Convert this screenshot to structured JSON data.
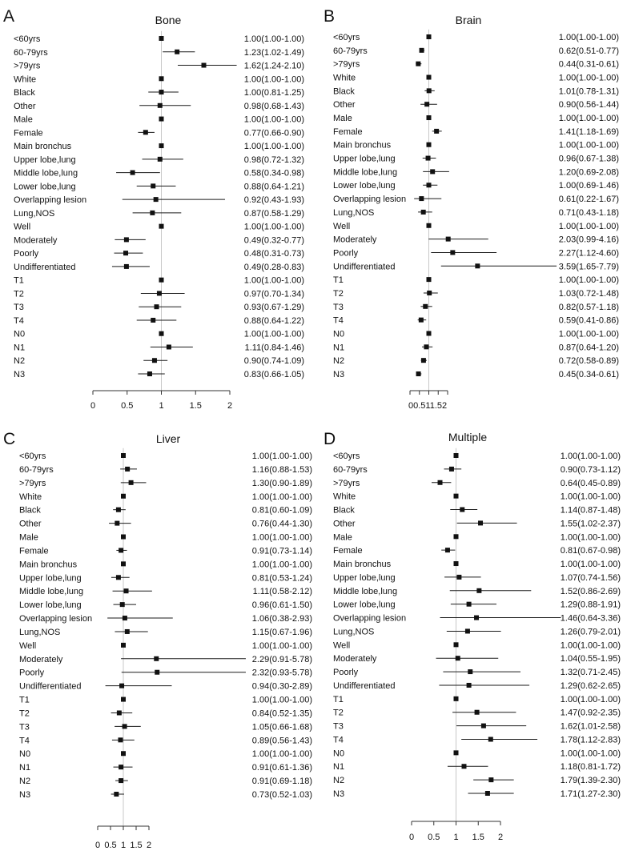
{
  "chart_data": [
    {
      "type": "forest",
      "panel_letter": "A",
      "title": "Bone",
      "ref_value": 1,
      "xticks": [
        0,
        0.5,
        1,
        1.5,
        2
      ],
      "xtick_labels": [
        "0",
        "0.5",
        "1",
        "1.5",
        "2"
      ],
      "rows": [
        {
          "label": "<60yrs",
          "est": 1.0,
          "lo": 1.0,
          "hi": 1.0,
          "text": "1.00(1.00-1.00)"
        },
        {
          "label": "60-79yrs",
          "est": 1.23,
          "lo": 1.02,
          "hi": 1.49,
          "text": "1.23(1.02-1.49)"
        },
        {
          "label": ">79yrs",
          "est": 1.62,
          "lo": 1.24,
          "hi": 2.1,
          "text": "1.62(1.24-2.10)"
        },
        {
          "label": "White",
          "est": 1.0,
          "lo": 1.0,
          "hi": 1.0,
          "text": "1.00(1.00-1.00)"
        },
        {
          "label": "Black",
          "est": 1.0,
          "lo": 0.81,
          "hi": 1.25,
          "text": "1.00(0.81-1.25)"
        },
        {
          "label": "Other",
          "est": 0.98,
          "lo": 0.68,
          "hi": 1.43,
          "text": "0.98(0.68-1.43)"
        },
        {
          "label": "Male",
          "est": 1.0,
          "lo": 1.0,
          "hi": 1.0,
          "text": "1.00(1.00-1.00)"
        },
        {
          "label": "Female",
          "est": 0.77,
          "lo": 0.66,
          "hi": 0.9,
          "text": "0.77(0.66-0.90)"
        },
        {
          "label": "Main bronchus",
          "est": 1.0,
          "lo": 1.0,
          "hi": 1.0,
          "text": "1.00(1.00-1.00)"
        },
        {
          "label": "Upper lobe,lung",
          "est": 0.98,
          "lo": 0.72,
          "hi": 1.32,
          "text": "0.98(0.72-1.32)"
        },
        {
          "label": "Middle lobe,lung",
          "est": 0.58,
          "lo": 0.34,
          "hi": 0.98,
          "text": "0.58(0.34-0.98)"
        },
        {
          "label": "Lower lobe,lung",
          "est": 0.88,
          "lo": 0.64,
          "hi": 1.21,
          "text": "0.88(0.64-1.21)"
        },
        {
          "label": "Overlapping lesion",
          "est": 0.92,
          "lo": 0.43,
          "hi": 1.93,
          "text": "0.92(0.43-1.93)"
        },
        {
          "label": "Lung,NOS",
          "est": 0.87,
          "lo": 0.58,
          "hi": 1.29,
          "text": "0.87(0.58-1.29)"
        },
        {
          "label": "Well",
          "est": 1.0,
          "lo": 1.0,
          "hi": 1.0,
          "text": "1.00(1.00-1.00)"
        },
        {
          "label": "Moderately",
          "est": 0.49,
          "lo": 0.32,
          "hi": 0.77,
          "text": "0.49(0.32-0.77)"
        },
        {
          "label": "Poorly",
          "est": 0.48,
          "lo": 0.31,
          "hi": 0.73,
          "text": "0.48(0.31-0.73)"
        },
        {
          "label": "Undifferentiated",
          "est": 0.49,
          "lo": 0.28,
          "hi": 0.83,
          "text": "0.49(0.28-0.83)"
        },
        {
          "label": "T1",
          "est": 1.0,
          "lo": 1.0,
          "hi": 1.0,
          "text": "1.00(1.00-1.00)"
        },
        {
          "label": "T2",
          "est": 0.97,
          "lo": 0.7,
          "hi": 1.34,
          "text": "0.97(0.70-1.34)"
        },
        {
          "label": "T3",
          "est": 0.93,
          "lo": 0.67,
          "hi": 1.29,
          "text": "0.93(0.67-1.29)"
        },
        {
          "label": "T4",
          "est": 0.88,
          "lo": 0.64,
          "hi": 1.22,
          "text": "0.88(0.64-1.22)"
        },
        {
          "label": "N0",
          "est": 1.0,
          "lo": 1.0,
          "hi": 1.0,
          "text": "1.00(1.00-1.00)"
        },
        {
          "label": "N1",
          "est": 1.11,
          "lo": 0.84,
          "hi": 1.46,
          "text": "1.11(0.84-1.46)"
        },
        {
          "label": "N2",
          "est": 0.9,
          "lo": 0.74,
          "hi": 1.09,
          "text": "0.90(0.74-1.09)"
        },
        {
          "label": "N3",
          "est": 0.83,
          "lo": 0.66,
          "hi": 1.05,
          "text": "0.83(0.66-1.05)"
        }
      ]
    },
    {
      "type": "forest",
      "panel_letter": "B",
      "title": "Brain",
      "ref_value": 1,
      "xticks": [
        0,
        0.5,
        1,
        1.5,
        2
      ],
      "xtick_labels_combined": "00.511.52",
      "rows": [
        {
          "label": "<60yrs",
          "est": 1.0,
          "lo": 1.0,
          "hi": 1.0,
          "text": "1.00(1.00-1.00)"
        },
        {
          "label": "60-79yrs",
          "est": 0.62,
          "lo": 0.51,
          "hi": 0.77,
          "text": "0.62(0.51-0.77)"
        },
        {
          "label": ">79yrs",
          "est": 0.44,
          "lo": 0.31,
          "hi": 0.61,
          "text": "0.44(0.31-0.61)"
        },
        {
          "label": "White",
          "est": 1.0,
          "lo": 1.0,
          "hi": 1.0,
          "text": "1.00(1.00-1.00)"
        },
        {
          "label": "Black",
          "est": 1.01,
          "lo": 0.78,
          "hi": 1.31,
          "text": "1.01(0.78-1.31)"
        },
        {
          "label": "Other",
          "est": 0.9,
          "lo": 0.56,
          "hi": 1.44,
          "text": "0.90(0.56-1.44)"
        },
        {
          "label": "Male",
          "est": 1.0,
          "lo": 1.0,
          "hi": 1.0,
          "text": "1.00(1.00-1.00)"
        },
        {
          "label": "Female",
          "est": 1.41,
          "lo": 1.18,
          "hi": 1.69,
          "text": "1.41(1.18-1.69)"
        },
        {
          "label": "Main bronchus",
          "est": 1.0,
          "lo": 1.0,
          "hi": 1.0,
          "text": "1.00(1.00-1.00)"
        },
        {
          "label": "Upper lobe,lung",
          "est": 0.96,
          "lo": 0.67,
          "hi": 1.38,
          "text": "0.96(0.67-1.38)"
        },
        {
          "label": "Middle lobe,lung",
          "est": 1.2,
          "lo": 0.69,
          "hi": 2.08,
          "text": "1.20(0.69-2.08)"
        },
        {
          "label": "Lower lobe,lung",
          "est": 1.0,
          "lo": 0.69,
          "hi": 1.46,
          "text": "1.00(0.69-1.46)"
        },
        {
          "label": "Overlapping lesion",
          "est": 0.61,
          "lo": 0.22,
          "hi": 1.67,
          "text": "0.61(0.22-1.67)"
        },
        {
          "label": "Lung,NOS",
          "est": 0.71,
          "lo": 0.43,
          "hi": 1.18,
          "text": "0.71(0.43-1.18)"
        },
        {
          "label": "Well",
          "est": 1.0,
          "lo": 1.0,
          "hi": 1.0,
          "text": "1.00(1.00-1.00)"
        },
        {
          "label": "Moderately",
          "est": 2.03,
          "lo": 0.99,
          "hi": 4.16,
          "text": "2.03(0.99-4.16)"
        },
        {
          "label": "Poorly",
          "est": 2.27,
          "lo": 1.12,
          "hi": 4.6,
          "text": "2.27(1.12-4.60)"
        },
        {
          "label": "Undifferentiated",
          "est": 3.59,
          "lo": 1.65,
          "hi": 7.79,
          "text": "3.59(1.65-7.79)"
        },
        {
          "label": "T1",
          "est": 1.0,
          "lo": 1.0,
          "hi": 1.0,
          "text": "1.00(1.00-1.00)"
        },
        {
          "label": "T2",
          "est": 1.03,
          "lo": 0.72,
          "hi": 1.48,
          "text": "1.03(0.72-1.48)"
        },
        {
          "label": "T3",
          "est": 0.82,
          "lo": 0.57,
          "hi": 1.18,
          "text": "0.82(0.57-1.18)"
        },
        {
          "label": "T4",
          "est": 0.59,
          "lo": 0.41,
          "hi": 0.86,
          "text": "0.59(0.41-0.86)"
        },
        {
          "label": "N0",
          "est": 1.0,
          "lo": 1.0,
          "hi": 1.0,
          "text": "1.00(1.00-1.00)"
        },
        {
          "label": "N1",
          "est": 0.87,
          "lo": 0.64,
          "hi": 1.2,
          "text": "0.87(0.64-1.20)"
        },
        {
          "label": "N2",
          "est": 0.72,
          "lo": 0.58,
          "hi": 0.89,
          "text": "0.72(0.58-0.89)"
        },
        {
          "label": "N3",
          "est": 0.45,
          "lo": 0.34,
          "hi": 0.61,
          "text": "0.45(0.34-0.61)"
        }
      ]
    },
    {
      "type": "forest",
      "panel_letter": "C",
      "title": "Liver",
      "ref_value": 1,
      "xticks": [
        0,
        0.5,
        1,
        1.5,
        2
      ],
      "xtick_labels": [
        "0",
        "0.5",
        "1",
        "1.5",
        "2"
      ],
      "rows": [
        {
          "label": "<60yrs",
          "est": 1.0,
          "lo": 1.0,
          "hi": 1.0,
          "text": "1.00(1.00-1.00)"
        },
        {
          "label": "60-79yrs",
          "est": 1.16,
          "lo": 0.88,
          "hi": 1.53,
          "text": "1.16(0.88-1.53)"
        },
        {
          "label": ">79yrs",
          "est": 1.3,
          "lo": 0.9,
          "hi": 1.89,
          "text": "1.30(0.90-1.89)"
        },
        {
          "label": "White",
          "est": 1.0,
          "lo": 1.0,
          "hi": 1.0,
          "text": "1.00(1.00-1.00)"
        },
        {
          "label": "Black",
          "est": 0.81,
          "lo": 0.6,
          "hi": 1.09,
          "text": "0.81(0.60-1.09)"
        },
        {
          "label": "Other",
          "est": 0.76,
          "lo": 0.44,
          "hi": 1.3,
          "text": "0.76(0.44-1.30)"
        },
        {
          "label": "Male",
          "est": 1.0,
          "lo": 1.0,
          "hi": 1.0,
          "text": "1.00(1.00-1.00)"
        },
        {
          "label": "Female",
          "est": 0.91,
          "lo": 0.73,
          "hi": 1.14,
          "text": "0.91(0.73-1.14)"
        },
        {
          "label": "Main bronchus",
          "est": 1.0,
          "lo": 1.0,
          "hi": 1.0,
          "text": "1.00(1.00-1.00)"
        },
        {
          "label": "Upper lobe,lung",
          "est": 0.81,
          "lo": 0.53,
          "hi": 1.24,
          "text": "0.81(0.53-1.24)"
        },
        {
          "label": "Middle lobe,lung",
          "est": 1.11,
          "lo": 0.58,
          "hi": 2.12,
          "text": "1.11(0.58-2.12)"
        },
        {
          "label": "Lower lobe,lung",
          "est": 0.96,
          "lo": 0.61,
          "hi": 1.5,
          "text": "0.96(0.61-1.50)"
        },
        {
          "label": "Overlapping lesion",
          "est": 1.06,
          "lo": 0.38,
          "hi": 2.93,
          "text": "1.06(0.38-2.93)"
        },
        {
          "label": "Lung,NOS",
          "est": 1.15,
          "lo": 0.67,
          "hi": 1.96,
          "text": "1.15(0.67-1.96)"
        },
        {
          "label": "Well",
          "est": 1.0,
          "lo": 1.0,
          "hi": 1.0,
          "text": "1.00(1.00-1.00)"
        },
        {
          "label": "Moderately",
          "est": 2.29,
          "lo": 0.91,
          "hi": 5.78,
          "text": "2.29(0.91-5.78)"
        },
        {
          "label": "Poorly",
          "est": 2.32,
          "lo": 0.93,
          "hi": 5.78,
          "text": "2.32(0.93-5.78)"
        },
        {
          "label": "Undifferentiated",
          "est": 0.94,
          "lo": 0.3,
          "hi": 2.89,
          "text": "0.94(0.30-2.89)"
        },
        {
          "label": "T1",
          "est": 1.0,
          "lo": 1.0,
          "hi": 1.0,
          "text": "1.00(1.00-1.00)"
        },
        {
          "label": "T2",
          "est": 0.84,
          "lo": 0.52,
          "hi": 1.35,
          "text": "0.84(0.52-1.35)"
        },
        {
          "label": "T3",
          "est": 1.05,
          "lo": 0.66,
          "hi": 1.68,
          "text": "1.05(0.66-1.68)"
        },
        {
          "label": "T4",
          "est": 0.89,
          "lo": 0.56,
          "hi": 1.43,
          "text": "0.89(0.56-1.43)"
        },
        {
          "label": "N0",
          "est": 1.0,
          "lo": 1.0,
          "hi": 1.0,
          "text": "1.00(1.00-1.00)"
        },
        {
          "label": "N1",
          "est": 0.91,
          "lo": 0.61,
          "hi": 1.36,
          "text": "0.91(0.61-1.36)"
        },
        {
          "label": "N2",
          "est": 0.91,
          "lo": 0.69,
          "hi": 1.18,
          "text": "0.91(0.69-1.18)"
        },
        {
          "label": "N3",
          "est": 0.73,
          "lo": 0.52,
          "hi": 1.03,
          "text": "0.73(0.52-1.03)"
        }
      ]
    },
    {
      "type": "forest",
      "panel_letter": "D",
      "title": "Multiple",
      "ref_value": 1,
      "xticks": [
        0,
        0.5,
        1,
        1.5,
        2
      ],
      "xtick_labels": [
        "0",
        "0.5",
        "1",
        "1.5",
        "2"
      ],
      "rows": [
        {
          "label": "<60yrs",
          "est": 1.0,
          "lo": 1.0,
          "hi": 1.0,
          "text": "1.00(1.00-1.00)"
        },
        {
          "label": "60-79yrs",
          "est": 0.9,
          "lo": 0.73,
          "hi": 1.12,
          "text": "0.90(0.73-1.12)"
        },
        {
          "label": ">79yrs",
          "est": 0.64,
          "lo": 0.45,
          "hi": 0.89,
          "text": "0.64(0.45-0.89)"
        },
        {
          "label": "White",
          "est": 1.0,
          "lo": 1.0,
          "hi": 1.0,
          "text": "1.00(1.00-1.00)"
        },
        {
          "label": "Black",
          "est": 1.14,
          "lo": 0.87,
          "hi": 1.48,
          "text": "1.14(0.87-1.48)"
        },
        {
          "label": "Other",
          "est": 1.55,
          "lo": 1.02,
          "hi": 2.37,
          "text": "1.55(1.02-2.37)"
        },
        {
          "label": "Male",
          "est": 1.0,
          "lo": 1.0,
          "hi": 1.0,
          "text": "1.00(1.00-1.00)"
        },
        {
          "label": "Female",
          "est": 0.81,
          "lo": 0.67,
          "hi": 0.98,
          "text": "0.81(0.67-0.98)"
        },
        {
          "label": "Main bronchus",
          "est": 1.0,
          "lo": 1.0,
          "hi": 1.0,
          "text": "1.00(1.00-1.00)"
        },
        {
          "label": "Upper lobe,lung",
          "est": 1.07,
          "lo": 0.74,
          "hi": 1.56,
          "text": "1.07(0.74-1.56)"
        },
        {
          "label": "Middle lobe,lung",
          "est": 1.52,
          "lo": 0.86,
          "hi": 2.69,
          "text": "1.52(0.86-2.69)"
        },
        {
          "label": "Lower lobe,lung",
          "est": 1.29,
          "lo": 0.88,
          "hi": 1.91,
          "text": "1.29(0.88-1.91)"
        },
        {
          "label": "Overlapping lesion",
          "est": 1.46,
          "lo": 0.64,
          "hi": 3.36,
          "text": "1.46(0.64-3.36)"
        },
        {
          "label": "Lung,NOS",
          "est": 1.26,
          "lo": 0.79,
          "hi": 2.01,
          "text": "1.26(0.79-2.01)"
        },
        {
          "label": "Well",
          "est": 1.0,
          "lo": 1.0,
          "hi": 1.0,
          "text": "1.00(1.00-1.00)"
        },
        {
          "label": "Moderately",
          "est": 1.04,
          "lo": 0.55,
          "hi": 1.95,
          "text": "1.04(0.55-1.95)"
        },
        {
          "label": "Poorly",
          "est": 1.32,
          "lo": 0.71,
          "hi": 2.45,
          "text": "1.32(0.71-2.45)"
        },
        {
          "label": "Undifferentiated",
          "est": 1.29,
          "lo": 0.62,
          "hi": 2.65,
          "text": "1.29(0.62-2.65)"
        },
        {
          "label": "T1",
          "est": 1.0,
          "lo": 1.0,
          "hi": 1.0,
          "text": "1.00(1.00-1.00)"
        },
        {
          "label": "T2",
          "est": 1.47,
          "lo": 0.92,
          "hi": 2.35,
          "text": "1.47(0.92-2.35)"
        },
        {
          "label": "T3",
          "est": 1.62,
          "lo": 1.01,
          "hi": 2.58,
          "text": "1.62(1.01-2.58)"
        },
        {
          "label": "T4",
          "est": 1.78,
          "lo": 1.12,
          "hi": 2.83,
          "text": "1.78(1.12-2.83)"
        },
        {
          "label": "N0",
          "est": 1.0,
          "lo": 1.0,
          "hi": 1.0,
          "text": "1.00(1.00-1.00)"
        },
        {
          "label": "N1",
          "est": 1.18,
          "lo": 0.81,
          "hi": 1.72,
          "text": "1.18(0.81-1.72)"
        },
        {
          "label": "N2",
          "est": 1.79,
          "lo": 1.39,
          "hi": 2.3,
          "text": "1.79(1.39-2.30)"
        },
        {
          "label": "N3",
          "est": 1.71,
          "lo": 1.27,
          "hi": 2.3,
          "text": "1.71(1.27-2.30)"
        }
      ]
    }
  ]
}
